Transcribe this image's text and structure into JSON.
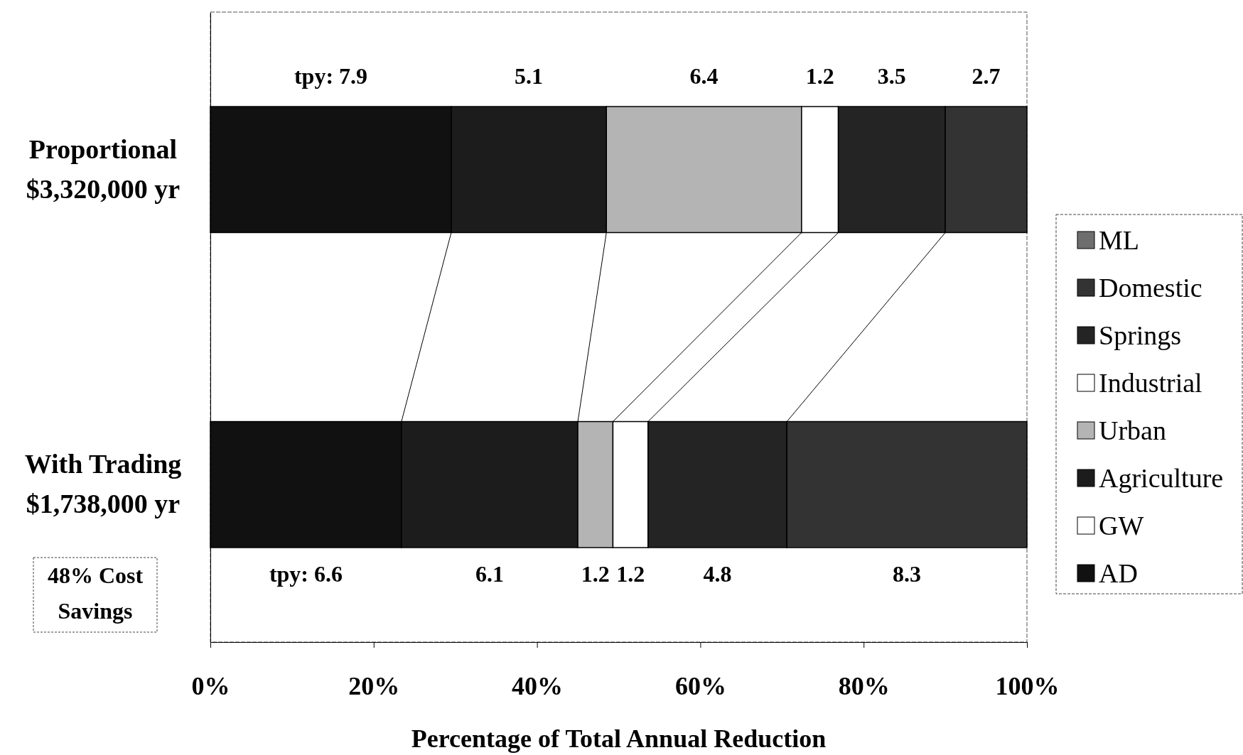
{
  "chart_data": {
    "type": "bar",
    "orientation": "horizontal",
    "stacked": true,
    "categories": [
      "Proportional\n$3,320,000 yr",
      "With Trading\n$1,738,000 yr"
    ],
    "series": [
      {
        "name": "AD",
        "color": "#111111",
        "values": [
          29.5,
          23.4
        ]
      },
      {
        "name": "GW",
        "color": "#ffffff",
        "values": [
          null,
          null
        ]
      },
      {
        "name": "Agriculture",
        "color": "#1c1c1c",
        "values": [
          19.0,
          21.6
        ]
      },
      {
        "name": "Urban",
        "color": "#b4b4b4",
        "values": [
          23.9,
          4.3
        ]
      },
      {
        "name": "Industrial",
        "color": "#ffffff",
        "values": [
          4.5,
          4.3
        ]
      },
      {
        "name": "Springs",
        "color": "#242424",
        "values": [
          13.1,
          17.0
        ]
      },
      {
        "name": "Domestic",
        "color": "#333333",
        "values": [
          10.0,
          29.4
        ]
      },
      {
        "name": "ML",
        "color": "#6e6e6e",
        "values": [
          null,
          null
        ]
      }
    ],
    "xlim": [
      0,
      100
    ],
    "xticks": [
      {
        "value": 0,
        "label": "0%"
      },
      {
        "value": 20,
        "label": "20%"
      },
      {
        "value": 40,
        "label": "40%"
      },
      {
        "value": 60,
        "label": "60%"
      },
      {
        "value": 80,
        "label": "80%"
      },
      {
        "value": 100,
        "label": "100%"
      }
    ],
    "xlabel": "Percentage of Total Annual Reduction",
    "annotations": [
      "tpy:  7.9",
      "5.1",
      "6.4",
      "1.2",
      "3.5",
      "2.7",
      "tpy:  6.6",
      "6.1",
      "1.2",
      "1.2",
      "4.8",
      "8.3",
      "48% Cost Savings"
    ],
    "legend": "right"
  }
}
